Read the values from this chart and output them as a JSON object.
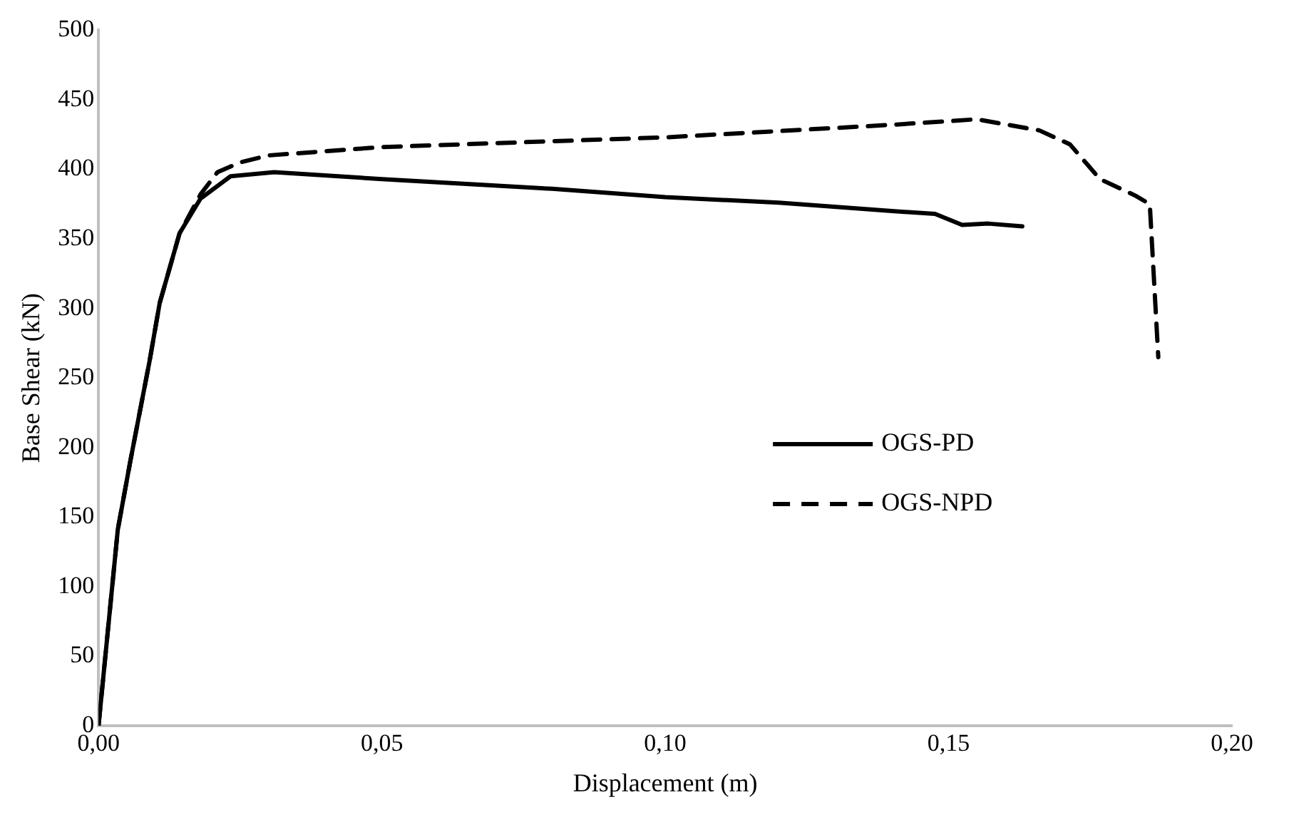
{
  "chart_data": {
    "type": "line",
    "xlabel": "Displacement (m)",
    "ylabel": "Base Shear (kN)",
    "xlim": [
      0,
      0.2
    ],
    "xticks": [
      {
        "value": 0,
        "label": "0,00"
      },
      {
        "value": 0.05,
        "label": "0,05"
      },
      {
        "value": 0.1,
        "label": "0,10"
      },
      {
        "value": 0.15,
        "label": "0,15"
      },
      {
        "value": 0.2,
        "label": "0,20"
      }
    ],
    "ylim": [
      0,
      500
    ],
    "yticks": [
      0,
      50,
      100,
      150,
      200,
      250,
      300,
      350,
      400,
      450,
      500
    ],
    "grid": false,
    "legend": "right",
    "marker": "none",
    "series": [
      {
        "name": "OGS-PD",
        "color": "#000000",
        "line_style": "solid",
        "x": [
          0,
          0.0034,
          0.0056,
          0.009,
          0.0108,
          0.0143,
          0.018,
          0.0233,
          0.031,
          0.05,
          0.08,
          0.1,
          0.12,
          0.14,
          0.1476,
          0.1524,
          0.157,
          0.163
        ],
        "values": [
          0,
          141,
          190,
          262,
          304,
          354,
          379,
          395,
          398,
          393,
          386,
          380,
          376,
          370,
          368,
          360,
          361,
          359
        ]
      },
      {
        "name": "OGS-NPD",
        "color": "#000000",
        "line_style": "dashed",
        "x": [
          0,
          0.0034,
          0.0056,
          0.009,
          0.0108,
          0.0143,
          0.018,
          0.021,
          0.025,
          0.03,
          0.05,
          0.1,
          0.14,
          0.155,
          0.166,
          0.1714,
          0.1767,
          0.183,
          0.1855,
          0.187
        ],
        "values": [
          0,
          141,
          190,
          262,
          304,
          354,
          382,
          398,
          405,
          410,
          416,
          423,
          432,
          436,
          428,
          418,
          393,
          381,
          375,
          265
        ]
      }
    ]
  }
}
